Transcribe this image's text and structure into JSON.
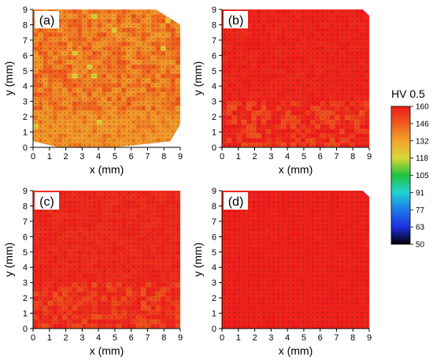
{
  "colorbar": {
    "title": "HV 0.5",
    "ticks": [
      "160",
      "146",
      "132",
      "118",
      "105",
      "91",
      "77",
      "63",
      "50"
    ],
    "stops": [
      "#ee1c1c",
      "#ef5a1e",
      "#f1a52c",
      "#d9d63a",
      "#1fc33a",
      "#22d2d5",
      "#1e78e8",
      "#1e2fe0",
      "#000000"
    ]
  },
  "chart_data": [
    {
      "type": "heatmap",
      "panel_label": "(a)",
      "xlabel": "x (mm)",
      "ylabel": "y (mm)",
      "xlim": [
        0,
        9
      ],
      "ylim": [
        0,
        9
      ],
      "xticks": [
        "0",
        "1",
        "2",
        "3",
        "4",
        "5",
        "6",
        "7",
        "8",
        "9"
      ],
      "yticks": [
        "0",
        "1",
        "2",
        "3",
        "4",
        "5",
        "6",
        "7",
        "8",
        "9"
      ],
      "hardness_range_hv": [
        118,
        152
      ],
      "dominant_value_hv": 140,
      "region_outline_mm": [
        [
          0,
          9
        ],
        [
          7.5,
          9
        ],
        [
          9,
          8
        ],
        [
          9,
          1.5
        ],
        [
          8.4,
          0.4
        ],
        [
          5,
          0
        ],
        [
          1.6,
          0
        ],
        [
          0,
          0.4
        ]
      ]
    },
    {
      "type": "heatmap",
      "panel_label": "(b)",
      "xlabel": "x (mm)",
      "ylabel": "y (mm)",
      "xlim": [
        0,
        9
      ],
      "ylim": [
        0,
        9
      ],
      "xticks": [
        "0",
        "1",
        "2",
        "3",
        "4",
        "5",
        "6",
        "7",
        "8",
        "9"
      ],
      "yticks": [
        "0",
        "1",
        "2",
        "3",
        "4",
        "5",
        "6",
        "7",
        "8",
        "9"
      ],
      "hardness_range_hv": [
        146,
        160
      ],
      "dominant_value_hv": 158,
      "region_outline_mm": [
        [
          0,
          9
        ],
        [
          8.6,
          9
        ],
        [
          9,
          8.6
        ],
        [
          9,
          0
        ],
        [
          0,
          0
        ]
      ]
    },
    {
      "type": "heatmap",
      "panel_label": "(c)",
      "xlabel": "x (mm)",
      "ylabel": "y (mm)",
      "xlim": [
        0,
        9
      ],
      "ylim": [
        0,
        9
      ],
      "xticks": [
        "0",
        "1",
        "2",
        "3",
        "4",
        "5",
        "6",
        "7",
        "8",
        "9"
      ],
      "yticks": [
        "0",
        "1",
        "2",
        "3",
        "4",
        "5",
        "6",
        "7",
        "8",
        "9"
      ],
      "hardness_range_hv": [
        146,
        160
      ],
      "dominant_value_hv": 157,
      "region_outline_mm": [
        [
          0,
          9
        ],
        [
          9,
          9
        ],
        [
          9,
          0
        ],
        [
          0,
          0
        ]
      ]
    },
    {
      "type": "heatmap",
      "panel_label": "(d)",
      "xlabel": "x (mm)",
      "ylabel": "y (mm)",
      "xlim": [
        0,
        9
      ],
      "ylim": [
        0,
        9
      ],
      "xticks": [
        "0",
        "1",
        "2",
        "3",
        "4",
        "5",
        "6",
        "7",
        "8",
        "9"
      ],
      "yticks": [
        "0",
        "1",
        "2",
        "3",
        "4",
        "5",
        "6",
        "7",
        "8",
        "9"
      ],
      "hardness_range_hv": [
        156,
        160
      ],
      "dominant_value_hv": 159,
      "region_outline_mm": [
        [
          0,
          9
        ],
        [
          8.6,
          9
        ],
        [
          9,
          8.6
        ],
        [
          9,
          0
        ],
        [
          0,
          0
        ]
      ]
    }
  ]
}
